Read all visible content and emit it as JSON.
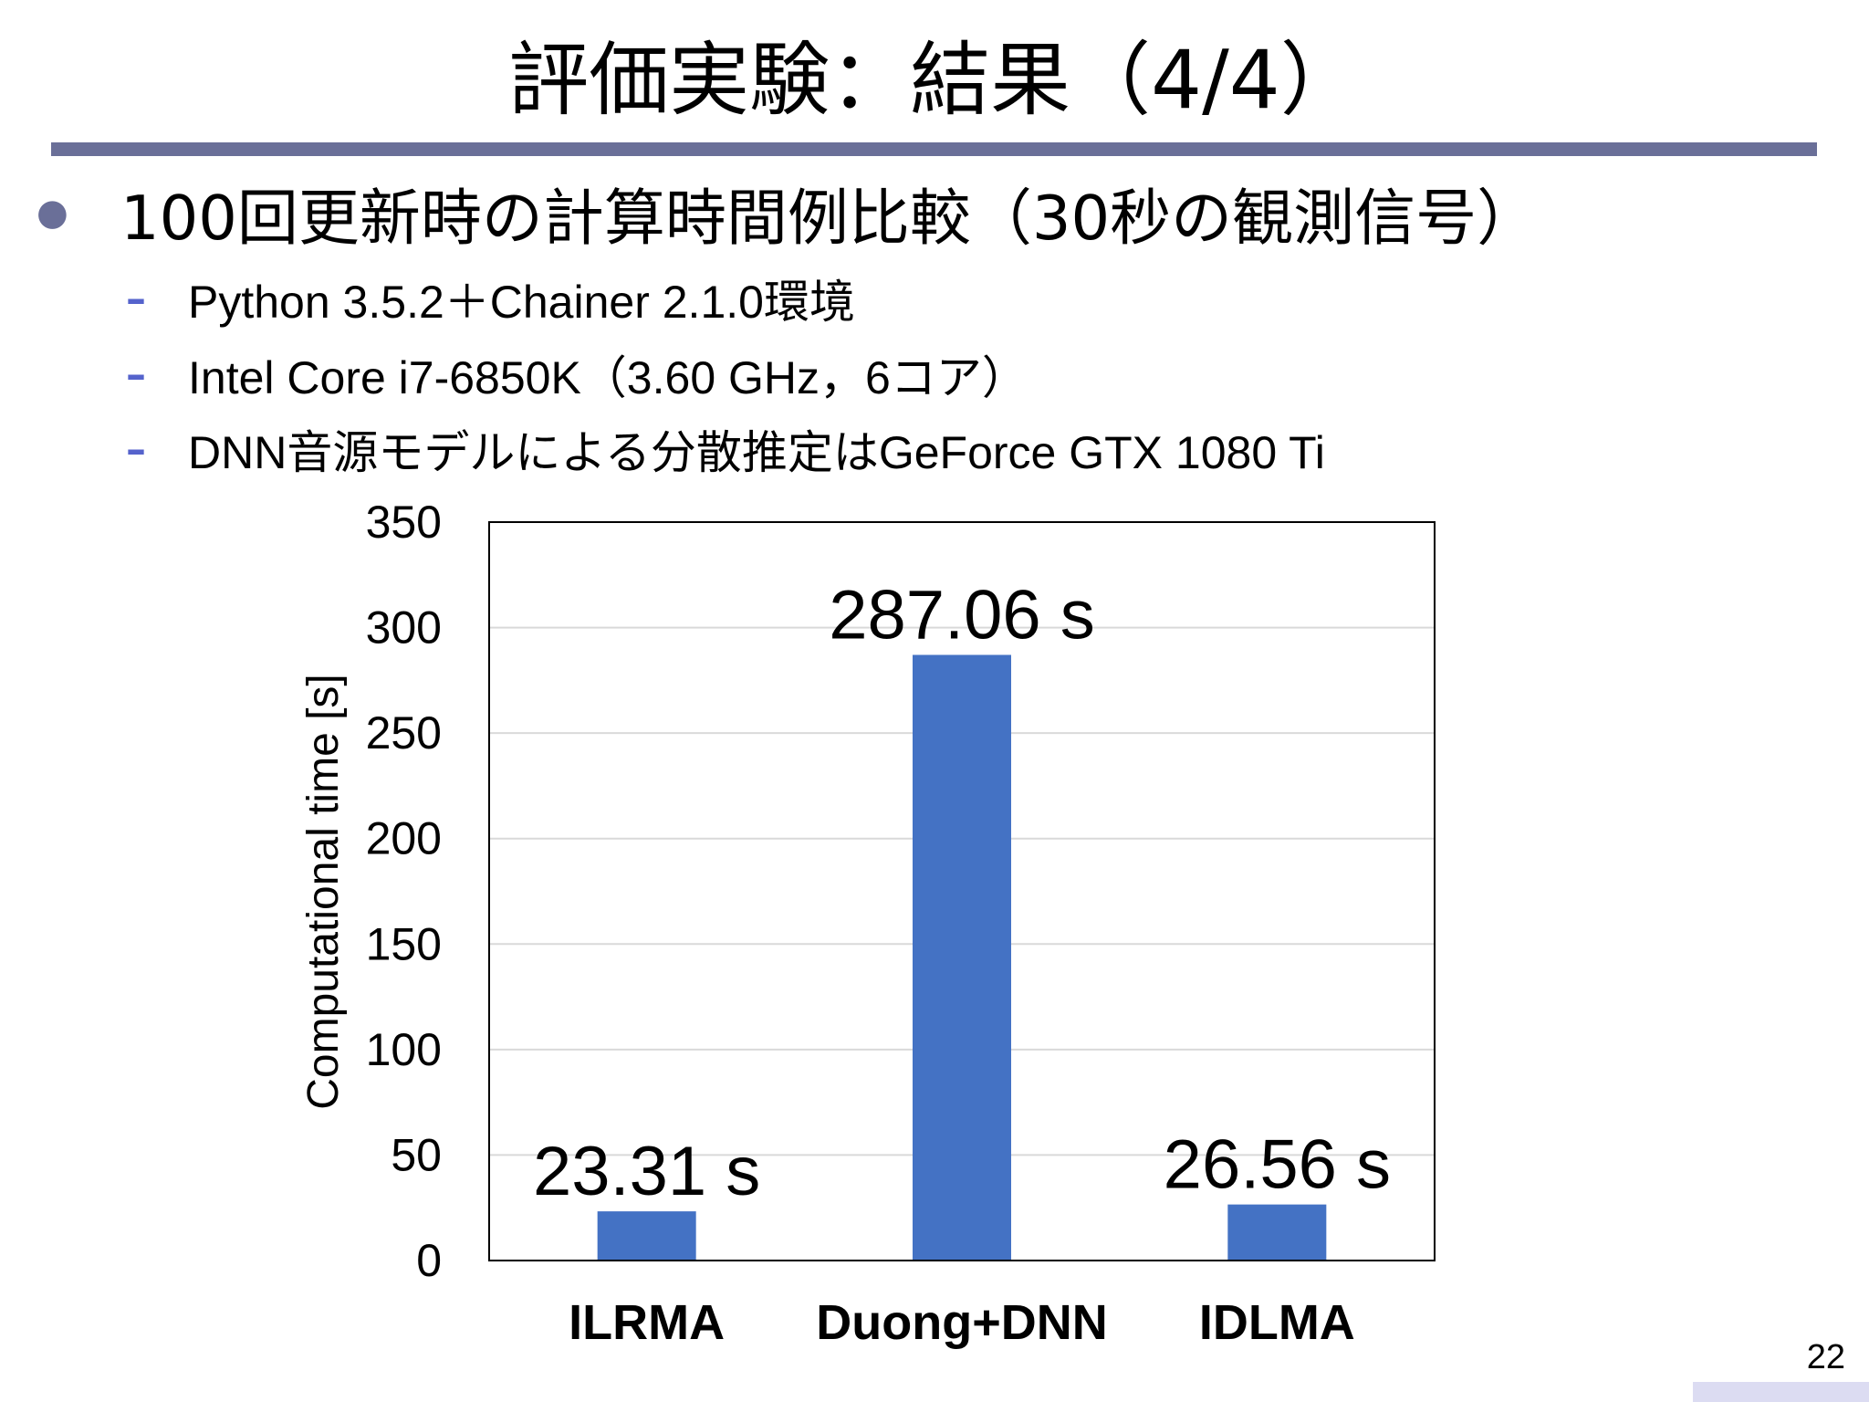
{
  "slide": {
    "title": "評価実験：結果（4/4）",
    "bullet": "100回更新時の計算時間例比較（30秒の観測信号）",
    "sub_bullets": [
      "Python 3.5.2＋Chainer 2.1.0環境",
      "Intel Core i7-6850K（3.60 GHz，6コア）",
      "DNN音源モデルによる分散推定はGeForce GTX 1080 Ti"
    ],
    "page_number": "22"
  },
  "colors": {
    "rule": "#6a6f98",
    "dash": "#5563cc",
    "bar": "#4472c4",
    "grid": "#d9d9d9"
  },
  "chart_data": {
    "type": "bar",
    "categories": [
      "ILRMA",
      "Duong+DNN",
      "IDLMA"
    ],
    "values": [
      23.31,
      287.06,
      26.56
    ],
    "data_labels": [
      "23.31 s",
      "287.06 s",
      "26.56 s"
    ],
    "title": "",
    "xlabel": "",
    "ylabel": "Computational time [s]",
    "ylim": [
      0,
      350
    ],
    "yticks": [
      0,
      50,
      100,
      150,
      200,
      250,
      300,
      350
    ],
    "grid": true,
    "legend": "none"
  }
}
